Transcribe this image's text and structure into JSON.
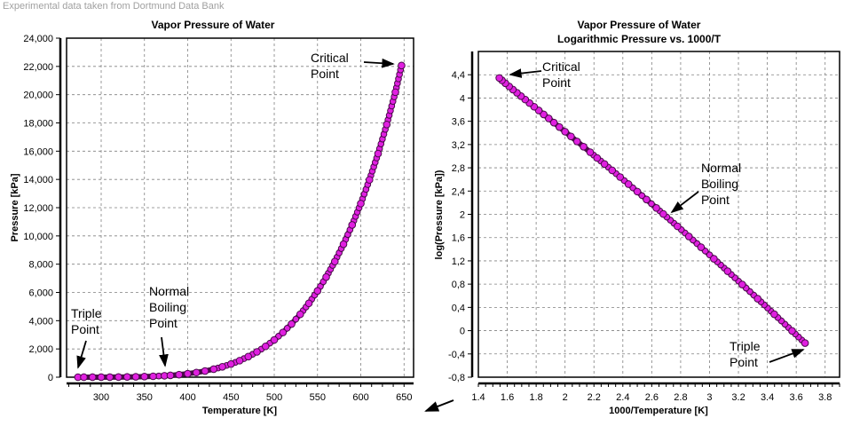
{
  "caption": "Experimental data taken from Dortmund Data Bank",
  "colors": {
    "marker_fill": "#e020e0",
    "marker_edge": "#4a0a4a",
    "grid": "#808080"
  },
  "nav_arrow_icon": "arrow-down-left",
  "chart_data": [
    {
      "type": "scatter",
      "title": "Vapor Pressure of Water",
      "xlabel": "Temperature [K]",
      "ylabel": "Pressure [kPa]",
      "xlim": [
        260,
        661
      ],
      "ylim": [
        0,
        24000
      ],
      "xticks": [
        "300",
        "350",
        "400",
        "450",
        "500",
        "550",
        "600",
        "650"
      ],
      "yticks": [
        "0",
        "2,000",
        "4,000",
        "6,000",
        "8,000",
        "10,000",
        "12,000",
        "14,000",
        "16,000",
        "18,000",
        "20,000",
        "22,000",
        "24,000"
      ],
      "grid": true,
      "x": [
        273.16,
        280,
        290,
        300,
        310,
        320,
        330,
        340,
        350,
        360,
        373.15,
        380,
        390,
        400,
        410,
        420,
        430,
        440,
        450,
        460,
        470,
        480,
        490,
        500,
        510,
        520,
        530,
        540,
        550,
        560,
        570,
        580,
        590,
        600,
        610,
        620,
        630,
        640,
        647.1
      ],
      "y": [
        0.611,
        0.99,
        1.92,
        3.54,
        6.23,
        10.55,
        17.2,
        27.2,
        41.7,
        62.2,
        101.3,
        128.7,
        179.5,
        245.8,
        330,
        437.3,
        570,
        733,
        932,
        1170,
        1455,
        1790,
        2183,
        2639,
        3165,
        3767,
        4452,
        5229,
        6104,
        7087,
        8187,
        9413,
        10777,
        12291,
        13970,
        15828,
        17887,
        20175,
        22064
      ],
      "annotations": [
        {
          "lines": [
            "Critical",
            "Point"
          ]
        },
        {
          "lines": [
            "Normal",
            "Boiling",
            "Point"
          ]
        },
        {
          "lines": [
            "Triple",
            "Point"
          ]
        }
      ]
    },
    {
      "type": "scatter",
      "title": "Vapor Pressure of Water",
      "subtitle": "Logarithmic Pressure vs. 1000/T",
      "xlabel": "1000/Temperature [K]",
      "ylabel": "log(Pressure [kPa])",
      "xlim": [
        1.4,
        3.9
      ],
      "ylim": [
        -0.8,
        4.8
      ],
      "xticks": [
        "1.4",
        "1.6",
        "1.8",
        "2",
        "2.2",
        "2.4",
        "2.6",
        "2.8",
        "3",
        "3.2",
        "3.4",
        "3.6",
        "3.8"
      ],
      "yticks": [
        "-0,8",
        "-0,4",
        "0",
        "0,4",
        "0,8",
        "1,2",
        "1,6",
        "2",
        "2,4",
        "2,8",
        "3,2",
        "3,6",
        "4",
        "4,4"
      ],
      "grid": true,
      "x": [
        3.661,
        3.571,
        3.448,
        3.333,
        3.226,
        3.125,
        3.03,
        2.941,
        2.857,
        2.778,
        2.68,
        2.632,
        2.564,
        2.5,
        2.439,
        2.381,
        2.326,
        2.273,
        2.222,
        2.174,
        2.128,
        2.083,
        2.041,
        2.0,
        1.961,
        1.923,
        1.887,
        1.852,
        1.818,
        1.786,
        1.754,
        1.724,
        1.695,
        1.667,
        1.639,
        1.613,
        1.587,
        1.563,
        1.545
      ],
      "y": [
        -0.214,
        -0.004,
        0.283,
        0.549,
        0.794,
        1.023,
        1.236,
        1.435,
        1.62,
        1.794,
        2.006,
        2.11,
        2.254,
        2.391,
        2.519,
        2.641,
        2.756,
        2.865,
        2.969,
        3.068,
        3.163,
        3.253,
        3.339,
        3.421,
        3.5,
        3.576,
        3.649,
        3.718,
        3.786,
        3.85,
        3.913,
        3.974,
        4.032,
        4.09,
        4.145,
        4.199,
        4.253,
        4.305,
        4.344
      ],
      "annotations": [
        {
          "lines": [
            "Critical",
            "Point"
          ]
        },
        {
          "lines": [
            "Normal",
            "Boiling",
            "Point"
          ]
        },
        {
          "lines": [
            "Triple",
            "Point"
          ]
        }
      ]
    }
  ]
}
